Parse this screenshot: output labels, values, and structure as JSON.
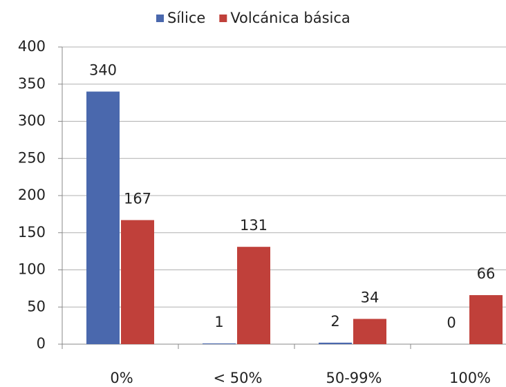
{
  "chart_data": {
    "type": "bar",
    "categories": [
      "0%",
      "< 50%",
      "50-99%",
      "100%"
    ],
    "series": [
      {
        "name": "Sílice",
        "color": "#4a68ad",
        "values": [
          340,
          1,
          2,
          0
        ]
      },
      {
        "name": "Volcánica básica",
        "color": "#c0403a",
        "values": [
          167,
          131,
          34,
          66
        ]
      }
    ],
    "ylim": [
      0,
      400
    ],
    "yticks": [
      0,
      50,
      100,
      150,
      200,
      250,
      300,
      350,
      400
    ],
    "grid": true,
    "legend": "top",
    "data_labels": true
  }
}
